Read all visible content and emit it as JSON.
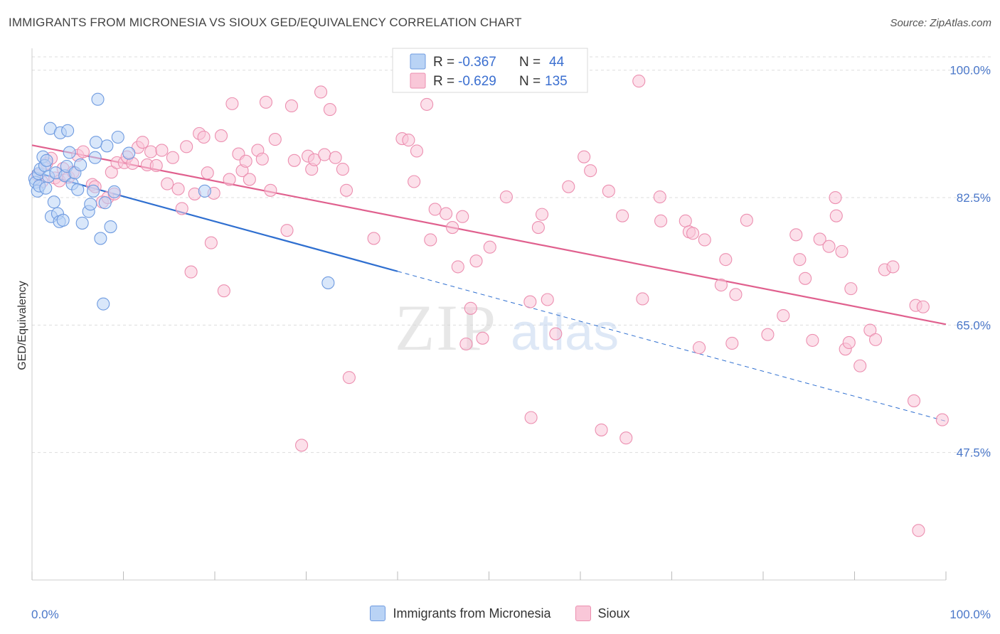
{
  "title": "IMMIGRANTS FROM MICRONESIA VS SIOUX GED/EQUIVALENCY CORRELATION CHART",
  "source": "Source: ZipAtlas.com",
  "watermark": {
    "zip": "ZIP",
    "atlas": "atlas"
  },
  "colors": {
    "blue_fill": "#b9d3f5",
    "blue_stroke": "#6f9be0",
    "blue_line": "#2f6fd0",
    "pink_fill": "#f9c7d8",
    "pink_stroke": "#ec8fb0",
    "pink_line": "#e0608e",
    "label_blue": "#4a77c9",
    "grid": "#dddddd"
  },
  "legend": {
    "series": [
      {
        "r_label": "R =",
        "r_value": "-0.367",
        "n_label": "N =",
        "n_value": "44"
      },
      {
        "r_label": "R =",
        "r_value": "-0.629",
        "n_label": "N =",
        "n_value": "135"
      }
    ]
  },
  "bottom_legend": [
    "Immigrants from Micronesia",
    "Sioux"
  ],
  "chart_data": {
    "type": "scatter",
    "title": "IMMIGRANTS FROM MICRONESIA VS SIOUX GED/EQUIVALENCY CORRELATION CHART",
    "xlabel": "",
    "ylabel": "GED/Equivalency",
    "xlim": [
      0,
      100
    ],
    "ylim": [
      30,
      103
    ],
    "x_tick_labels": [
      "0.0%",
      "100.0%"
    ],
    "y_ticks": [
      47.5,
      65.0,
      82.5,
      100.0
    ],
    "y_tick_labels": [
      "47.5%",
      "65.0%",
      "82.5%",
      "100.0%"
    ],
    "grid": true,
    "series": [
      {
        "name": "Immigrants from Micronesia",
        "r": -0.367,
        "n": 44,
        "trend": {
          "x0": 0,
          "y0": 86.1,
          "x1_solid": 40,
          "x1": 100,
          "y1": 51.8
        },
        "points": [
          [
            0.3,
            85.1
          ],
          [
            0.4,
            84.6
          ],
          [
            0.6,
            83.4
          ],
          [
            0.7,
            85.8
          ],
          [
            0.8,
            84.1
          ],
          [
            0.9,
            86.4
          ],
          [
            1.2,
            88.1
          ],
          [
            1.4,
            86.9
          ],
          [
            1.6,
            87.6
          ],
          [
            1.8,
            85.4
          ],
          [
            1.5,
            83.8
          ],
          [
            2.0,
            92.0
          ],
          [
            2.1,
            79.9
          ],
          [
            2.4,
            81.9
          ],
          [
            2.6,
            85.9
          ],
          [
            2.8,
            80.3
          ],
          [
            3.0,
            79.2
          ],
          [
            3.1,
            91.4
          ],
          [
            3.4,
            79.4
          ],
          [
            3.6,
            85.5
          ],
          [
            3.8,
            86.8
          ],
          [
            3.9,
            91.7
          ],
          [
            4.1,
            88.7
          ],
          [
            4.4,
            84.4
          ],
          [
            4.7,
            85.9
          ],
          [
            5.0,
            83.6
          ],
          [
            5.3,
            87.0
          ],
          [
            5.5,
            79.0
          ],
          [
            6.2,
            80.6
          ],
          [
            6.4,
            81.6
          ],
          [
            6.7,
            83.4
          ],
          [
            7.2,
            96.0
          ],
          [
            7.5,
            76.9
          ],
          [
            7.8,
            67.9
          ],
          [
            8.0,
            81.8
          ],
          [
            8.2,
            89.6
          ],
          [
            8.6,
            78.5
          ],
          [
            9.0,
            83.3
          ],
          [
            9.4,
            90.8
          ],
          [
            10.6,
            88.6
          ],
          [
            7.0,
            90.1
          ],
          [
            18.9,
            83.4
          ],
          [
            32.4,
            70.8
          ],
          [
            6.9,
            88.0
          ]
        ]
      },
      {
        "name": "Sioux",
        "r": -0.629,
        "n": 135,
        "trend": {
          "x0": 0,
          "y0": 89.7,
          "x1": 100,
          "y1": 65.1
        },
        "points": [
          [
            0.6,
            85.6
          ],
          [
            1.1,
            84.7
          ],
          [
            1.6,
            87.2
          ],
          [
            2.1,
            87.9
          ],
          [
            2.5,
            85.2
          ],
          [
            3.0,
            84.8
          ],
          [
            3.4,
            86.5
          ],
          [
            4.0,
            85.3
          ],
          [
            4.5,
            86.0
          ],
          [
            5.0,
            88.3
          ],
          [
            5.6,
            88.8
          ],
          [
            6.6,
            84.3
          ],
          [
            6.9,
            84.0
          ],
          [
            7.7,
            81.9
          ],
          [
            8.3,
            82.5
          ],
          [
            8.7,
            86.0
          ],
          [
            9.0,
            83.0
          ],
          [
            9.3,
            87.3
          ],
          [
            10.1,
            87.3
          ],
          [
            10.4,
            88.1
          ],
          [
            11.0,
            87.2
          ],
          [
            11.6,
            89.4
          ],
          [
            12.1,
            90.1
          ],
          [
            12.6,
            87.0
          ],
          [
            13.0,
            88.8
          ],
          [
            13.6,
            86.9
          ],
          [
            14.2,
            89.0
          ],
          [
            14.8,
            84.4
          ],
          [
            15.4,
            88.0
          ],
          [
            16.0,
            83.7
          ],
          [
            16.4,
            81.0
          ],
          [
            16.9,
            89.5
          ],
          [
            17.4,
            72.3
          ],
          [
            17.8,
            83.0
          ],
          [
            18.3,
            91.3
          ],
          [
            18.8,
            90.8
          ],
          [
            19.2,
            85.9
          ],
          [
            19.6,
            76.3
          ],
          [
            19.9,
            83.1
          ],
          [
            20.7,
            91.0
          ],
          [
            21.0,
            69.7
          ],
          [
            21.6,
            85.0
          ],
          [
            21.9,
            95.4
          ],
          [
            22.6,
            88.5
          ],
          [
            23.0,
            86.2
          ],
          [
            23.4,
            87.5
          ],
          [
            23.8,
            85.0
          ],
          [
            24.7,
            89.0
          ],
          [
            25.2,
            87.8
          ],
          [
            25.6,
            95.6
          ],
          [
            26.1,
            83.5
          ],
          [
            26.6,
            90.5
          ],
          [
            27.9,
            78.0
          ],
          [
            28.4,
            95.1
          ],
          [
            28.7,
            87.6
          ],
          [
            29.5,
            48.5
          ],
          [
            30.2,
            88.2
          ],
          [
            30.6,
            86.4
          ],
          [
            30.9,
            87.7
          ],
          [
            31.6,
            97.0
          ],
          [
            32.0,
            88.4
          ],
          [
            32.6,
            94.6
          ],
          [
            33.2,
            88.0
          ],
          [
            34.0,
            86.4
          ],
          [
            34.4,
            83.5
          ],
          [
            34.7,
            57.8
          ],
          [
            37.4,
            76.9
          ],
          [
            40.5,
            90.6
          ],
          [
            41.2,
            90.4
          ],
          [
            41.8,
            84.7
          ],
          [
            42.1,
            88.9
          ],
          [
            43.2,
            95.3
          ],
          [
            43.6,
            76.7
          ],
          [
            44.1,
            80.9
          ],
          [
            45.3,
            80.3
          ],
          [
            46.0,
            78.4
          ],
          [
            46.6,
            73.0
          ],
          [
            47.1,
            79.9
          ],
          [
            47.5,
            62.4
          ],
          [
            48.0,
            67.3
          ],
          [
            48.6,
            73.8
          ],
          [
            49.3,
            63.2
          ],
          [
            50.1,
            75.7
          ],
          [
            51.9,
            82.6
          ],
          [
            54.5,
            68.2
          ],
          [
            54.6,
            52.3
          ],
          [
            55.4,
            78.4
          ],
          [
            55.8,
            80.2
          ],
          [
            56.4,
            68.5
          ],
          [
            57.3,
            63.8
          ],
          [
            58.7,
            84.0
          ],
          [
            60.4,
            88.1
          ],
          [
            61.1,
            86.2
          ],
          [
            62.3,
            50.6
          ],
          [
            63.1,
            83.4
          ],
          [
            64.6,
            80.0
          ],
          [
            65.0,
            49.5
          ],
          [
            66.4,
            98.5
          ],
          [
            66.8,
            68.6
          ],
          [
            68.7,
            82.6
          ],
          [
            68.8,
            79.3
          ],
          [
            71.5,
            79.3
          ],
          [
            71.9,
            77.8
          ],
          [
            72.3,
            77.6
          ],
          [
            73.0,
            61.9
          ],
          [
            73.6,
            76.7
          ],
          [
            75.4,
            70.5
          ],
          [
            75.9,
            74.0
          ],
          [
            76.6,
            62.5
          ],
          [
            77.0,
            69.2
          ],
          [
            78.2,
            79.4
          ],
          [
            80.5,
            63.7
          ],
          [
            82.2,
            66.3
          ],
          [
            83.6,
            77.4
          ],
          [
            84.0,
            74.0
          ],
          [
            84.6,
            71.4
          ],
          [
            85.4,
            62.9
          ],
          [
            86.2,
            76.8
          ],
          [
            87.2,
            75.8
          ],
          [
            87.9,
            82.5
          ],
          [
            88.0,
            80.0
          ],
          [
            88.6,
            75.1
          ],
          [
            89.0,
            61.7
          ],
          [
            89.4,
            62.6
          ],
          [
            89.6,
            70.0
          ],
          [
            90.6,
            59.4
          ],
          [
            91.7,
            64.3
          ],
          [
            92.3,
            63.0
          ],
          [
            93.3,
            72.6
          ],
          [
            94.2,
            73.0
          ],
          [
            96.5,
            54.6
          ],
          [
            96.7,
            67.7
          ],
          [
            97.0,
            36.8
          ],
          [
            97.5,
            67.5
          ],
          [
            99.6,
            52.0
          ]
        ]
      }
    ]
  }
}
